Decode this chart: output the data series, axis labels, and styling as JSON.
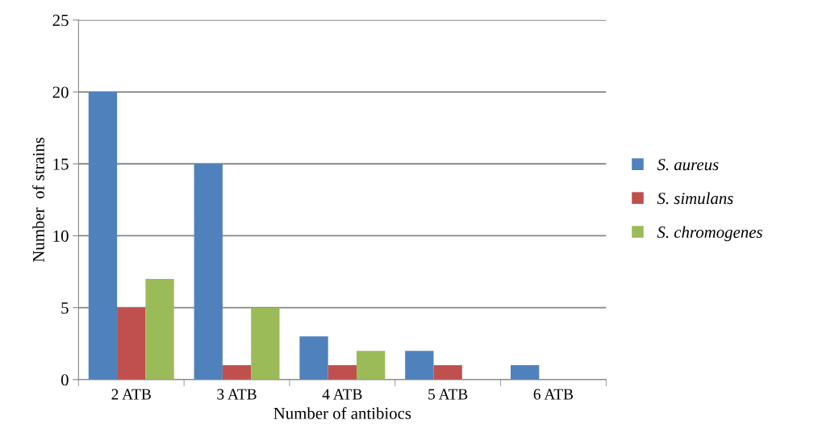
{
  "chart_data": {
    "type": "bar",
    "xlabel": "Number of antibiocs",
    "ylabel": "Number  of strains",
    "categories": [
      "2 ATB",
      "3 ATB",
      "4 ATB",
      "5 ATB",
      "6 ATB"
    ],
    "series": [
      {
        "name": "S. aureus",
        "color": "#4f81bd",
        "values": [
          20,
          15,
          3,
          2,
          1
        ]
      },
      {
        "name": "S. simulans",
        "color": "#c0504d",
        "values": [
          5,
          1,
          1,
          1,
          0
        ]
      },
      {
        "name": "S. chromogenes",
        "color": "#9bbb59",
        "values": [
          7,
          5,
          2,
          0,
          0
        ]
      }
    ],
    "ylim": [
      0,
      25
    ],
    "yticks": [
      0,
      5,
      10,
      15,
      20,
      25
    ],
    "grid": "y",
    "legend": "right"
  }
}
